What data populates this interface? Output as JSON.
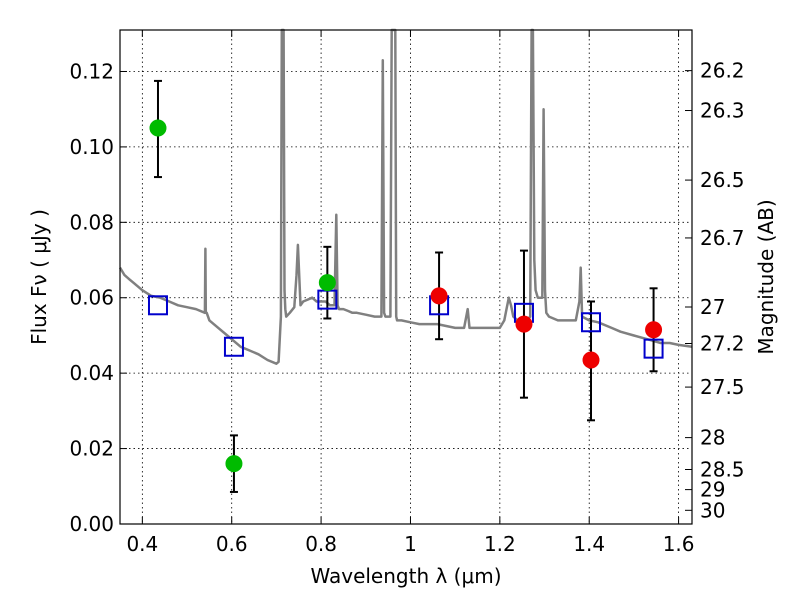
{
  "chart_data": {
    "type": "scatter",
    "xlabel": "Wavelength  λ (μm)",
    "ylabel": "Flux  Fν  ( μJy )",
    "ylabel_right": "Magnitude (AB)",
    "xlim": [
      0.35,
      1.63
    ],
    "ylim": [
      0.0,
      0.131
    ],
    "grid": true,
    "x_ticks": [
      0.4,
      0.6,
      0.8,
      1.0,
      1.2,
      1.4,
      1.6
    ],
    "x_tick_labels": [
      "0.4",
      "0.6",
      "0.8",
      "1",
      "1.2",
      "1.4",
      "1.6"
    ],
    "y_ticks": [
      0.0,
      0.02,
      0.04,
      0.06,
      0.08,
      0.1,
      0.12
    ],
    "y_tick_labels": [
      "0.00",
      "0.02",
      "0.04",
      "0.06",
      "0.08",
      "0.10",
      "0.12"
    ],
    "magnitude_ticks": [
      "26.2",
      "26.3",
      "26.5",
      "26.7",
      "27",
      "27.2",
      "27.5",
      "28",
      "28.5",
      "29",
      "30"
    ],
    "colors": {
      "spectrum": "#808080",
      "model_points": "#0000cc",
      "green_points": "#00bb00",
      "red_points": "#ee0000",
      "grid": "#000000"
    },
    "series": [
      {
        "marker": "square-open",
        "color": "#0000cc",
        "points": [
          {
            "x": 0.435,
            "y": 0.058
          },
          {
            "x": 0.605,
            "y": 0.047
          },
          {
            "x": 0.814,
            "y": 0.0595
          },
          {
            "x": 1.064,
            "y": 0.058
          },
          {
            "x": 1.254,
            "y": 0.056
          },
          {
            "x": 1.404,
            "y": 0.0535
          },
          {
            "x": 1.544,
            "y": 0.0465
          }
        ]
      },
      {
        "marker": "circle-filled",
        "color": "#00bb00",
        "points": [
          {
            "x": 0.435,
            "y": 0.105,
            "err_low": 0.092,
            "err_high": 0.1175
          },
          {
            "x": 0.605,
            "y": 0.016,
            "err_low": 0.0085,
            "err_high": 0.0235
          },
          {
            "x": 0.814,
            "y": 0.064,
            "err_low": 0.0545,
            "err_high": 0.0735
          }
        ]
      },
      {
        "marker": "circle-filled",
        "color": "#ee0000",
        "points": [
          {
            "x": 1.064,
            "y": 0.0605,
            "err_low": 0.049,
            "err_high": 0.072
          },
          {
            "x": 1.254,
            "y": 0.053,
            "err_low": 0.0335,
            "err_high": 0.0725
          },
          {
            "x": 1.404,
            "y": 0.0435,
            "err_low": 0.0275,
            "err_high": 0.059
          },
          {
            "x": 1.544,
            "y": 0.0515,
            "err_low": 0.0405,
            "err_high": 0.0625
          }
        ]
      }
    ],
    "spectrum": {
      "x": [
        0.35,
        0.36,
        0.37,
        0.38,
        0.4,
        0.42,
        0.44,
        0.46,
        0.48,
        0.5,
        0.52,
        0.54,
        0.541,
        0.542,
        0.543,
        0.544,
        0.55,
        0.57,
        0.59,
        0.6,
        0.62,
        0.64,
        0.66,
        0.68,
        0.7,
        0.705,
        0.71,
        0.712,
        0.714,
        0.716,
        0.718,
        0.72,
        0.722,
        0.73,
        0.74,
        0.745,
        0.748,
        0.751,
        0.754,
        0.76,
        0.77,
        0.78,
        0.79,
        0.8,
        0.81,
        0.82,
        0.83,
        0.834,
        0.837,
        0.84,
        0.85,
        0.86,
        0.87,
        0.88,
        0.9,
        0.92,
        0.935,
        0.938,
        0.941,
        0.944,
        0.95,
        0.955,
        0.958,
        0.96,
        0.962,
        0.964,
        0.966,
        0.968,
        0.97,
        0.975,
        0.98,
        1.0,
        1.02,
        1.04,
        1.06,
        1.08,
        1.1,
        1.12,
        1.128,
        1.132,
        1.136,
        1.15,
        1.18,
        1.2,
        1.21,
        1.215,
        1.22,
        1.225,
        1.23,
        1.24,
        1.25,
        1.26,
        1.268,
        1.271,
        1.274,
        1.277,
        1.28,
        1.285,
        1.295,
        1.298,
        1.301,
        1.304,
        1.31,
        1.33,
        1.35,
        1.37,
        1.378,
        1.381,
        1.384,
        1.4,
        1.42,
        1.45,
        1.47,
        1.5,
        1.53,
        1.56,
        1.58,
        1.6,
        1.63
      ],
      "y": [
        0.068,
        0.066,
        0.065,
        0.064,
        0.062,
        0.0605,
        0.06,
        0.059,
        0.058,
        0.0575,
        0.057,
        0.056,
        0.073,
        0.056,
        0.056,
        0.056,
        0.054,
        0.052,
        0.05,
        0.049,
        0.047,
        0.046,
        0.045,
        0.0435,
        0.0425,
        0.043,
        0.055,
        0.14,
        0.14,
        0.14,
        0.062,
        0.057,
        0.055,
        0.056,
        0.0575,
        0.066,
        0.074,
        0.066,
        0.058,
        0.059,
        0.0595,
        0.06,
        0.059,
        0.059,
        0.059,
        0.058,
        0.058,
        0.082,
        0.058,
        0.057,
        0.057,
        0.0565,
        0.056,
        0.056,
        0.0555,
        0.055,
        0.055,
        0.123,
        0.056,
        0.055,
        0.055,
        0.055,
        0.14,
        0.14,
        0.14,
        0.14,
        0.14,
        0.055,
        0.054,
        0.054,
        0.054,
        0.0535,
        0.053,
        0.053,
        0.053,
        0.0525,
        0.052,
        0.052,
        0.057,
        0.052,
        0.052,
        0.052,
        0.052,
        0.052,
        0.054,
        0.057,
        0.06,
        0.058,
        0.055,
        0.054,
        0.054,
        0.054,
        0.055,
        0.14,
        0.14,
        0.07,
        0.062,
        0.06,
        0.06,
        0.11,
        0.062,
        0.056,
        0.055,
        0.054,
        0.054,
        0.054,
        0.059,
        0.068,
        0.055,
        0.054,
        0.0535,
        0.052,
        0.051,
        0.05,
        0.049,
        0.048,
        0.048,
        0.0475,
        0.047
      ]
    }
  }
}
